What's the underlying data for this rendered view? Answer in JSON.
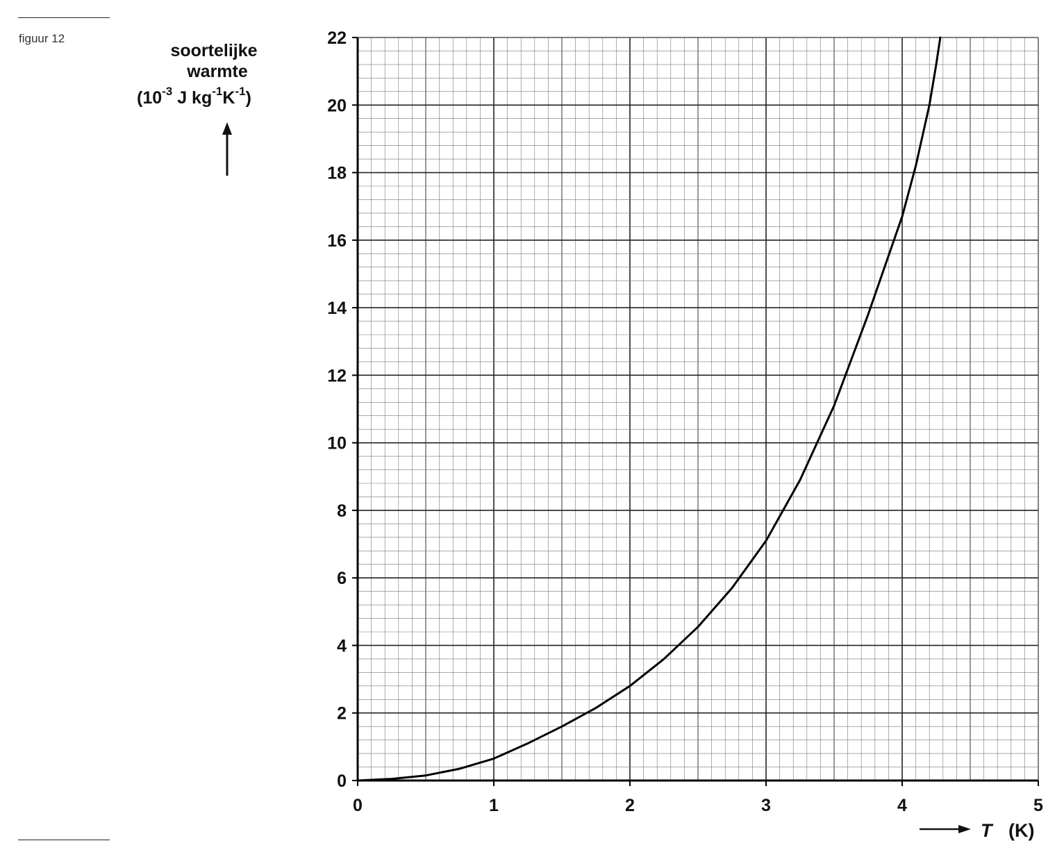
{
  "figure": {
    "label": "figuur 12"
  },
  "chart_data": {
    "type": "line",
    "title": "",
    "ylabel_lines": [
      "soortelijke",
      "warmte"
    ],
    "ylabel_unit": {
      "open": "(10",
      "exp1": "-3",
      "mid": " J kg",
      "exp2": "-1",
      "k": "K",
      "exp3": "-1",
      "close": ")"
    },
    "xlabel": {
      "symbol": "T",
      "unit": "(K)"
    },
    "xlim": [
      0,
      5
    ],
    "ylim": [
      0,
      22
    ],
    "x_ticks": [
      0,
      1,
      2,
      3,
      4,
      5
    ],
    "y_ticks": [
      0,
      2,
      4,
      6,
      8,
      10,
      12,
      14,
      16,
      18,
      20,
      22
    ],
    "grid": true,
    "grid_minor_x": 0.1,
    "grid_minor_y": 0.4,
    "grid_major_x": 0.5,
    "grid_major_y": 2,
    "axis_color": "#000000",
    "line_color": "#000000",
    "series": [
      {
        "x": [
          0.0,
          0.25,
          0.5,
          0.75,
          1.0,
          1.25,
          1.5,
          1.75,
          2.0,
          2.25,
          2.5,
          2.75,
          3.0,
          3.25,
          3.5,
          3.75,
          4.0,
          4.1,
          4.2,
          4.25,
          4.28
        ],
        "y": [
          0.0,
          0.05,
          0.15,
          0.35,
          0.65,
          1.1,
          1.6,
          2.15,
          2.8,
          3.6,
          4.55,
          5.7,
          7.1,
          8.9,
          11.1,
          13.8,
          16.7,
          18.2,
          20.0,
          21.2,
          22.0
        ]
      }
    ]
  }
}
